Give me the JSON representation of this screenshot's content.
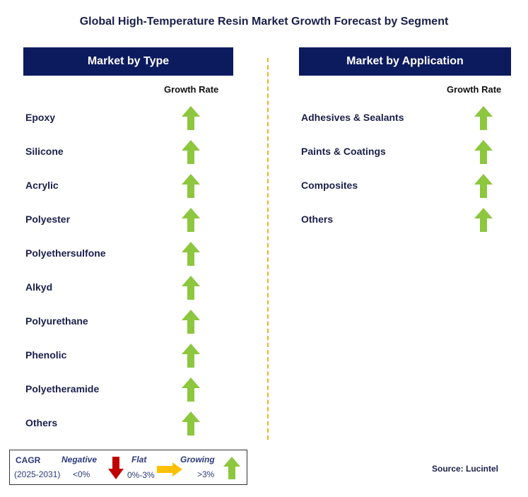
{
  "title": "Global High-Temperature Resin Market Growth Forecast by Segment",
  "left_panel": {
    "header": "Market by Type",
    "growth_label": "Growth Rate",
    "items": [
      {
        "label": "Epoxy",
        "trend": "growing"
      },
      {
        "label": "Silicone",
        "trend": "growing"
      },
      {
        "label": "Acrylic",
        "trend": "growing"
      },
      {
        "label": "Polyester",
        "trend": "growing"
      },
      {
        "label": "Polyethersulfone",
        "trend": "growing"
      },
      {
        "label": "Alkyd",
        "trend": "growing"
      },
      {
        "label": "Polyurethane",
        "trend": "growing"
      },
      {
        "label": "Phenolic",
        "trend": "growing"
      },
      {
        "label": "Polyetheramide",
        "trend": "growing"
      },
      {
        "label": "Others",
        "trend": "growing"
      }
    ]
  },
  "right_panel": {
    "header": "Market by Application",
    "growth_label": "Growth Rate",
    "items": [
      {
        "label": "Adhesives & Sealants",
        "trend": "growing"
      },
      {
        "label": "Paints & Coatings",
        "trend": "growing"
      },
      {
        "label": "Composites",
        "trend": "growing"
      },
      {
        "label": "Others",
        "trend": "growing"
      }
    ]
  },
  "legend": {
    "cagr_label": "CAGR",
    "period": "(2025-2031)",
    "negative_label": "Negative",
    "negative_range": "<0%",
    "flat_label": "Flat",
    "flat_range": "0%-3%",
    "growing_label": "Growing",
    "growing_range": ">3%"
  },
  "source": "Source: Lucintel",
  "colors": {
    "header_bg": "#0c1a5e",
    "up_arrow": "#8dc63f",
    "down_arrow": "#c00000",
    "flat_arrow": "#ffc000",
    "divider": "#f2b01e"
  }
}
